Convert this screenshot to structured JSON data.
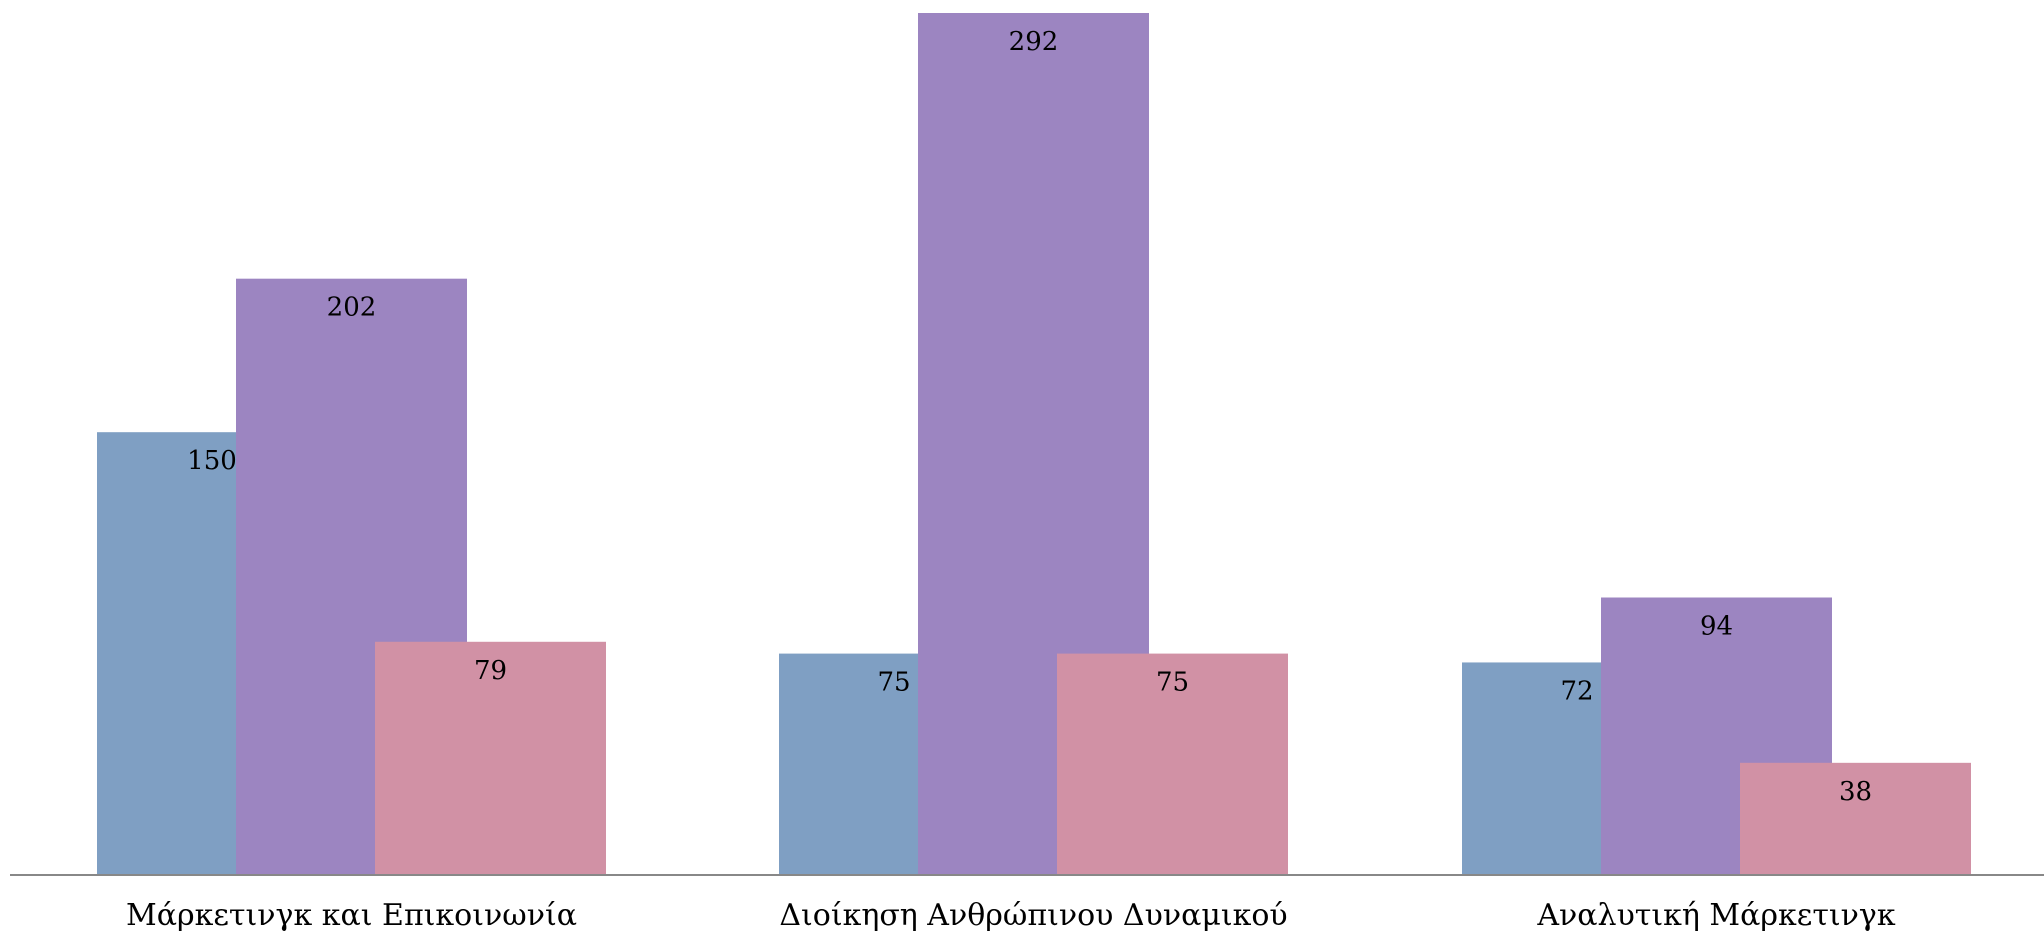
{
  "chart_data": {
    "type": "bar",
    "categories": [
      "Μάρκετινγκ και Επικοινωνία",
      "Διοίκηση Ανθρώπινου Δυναμικού",
      "Αναλυτική Μάρκετινγκ"
    ],
    "series": [
      {
        "color": "#7f9fc3",
        "values": [
          150,
          75,
          72
        ]
      },
      {
        "color": "#9c85c1",
        "values": [
          202,
          292,
          94
        ]
      },
      {
        "color": "#d191a5",
        "values": [
          79,
          75,
          38
        ]
      }
    ],
    "ylim": [
      0,
      292
    ],
    "grid": false,
    "legend": "none",
    "title": "",
    "xlabel": "",
    "ylabel": ""
  }
}
